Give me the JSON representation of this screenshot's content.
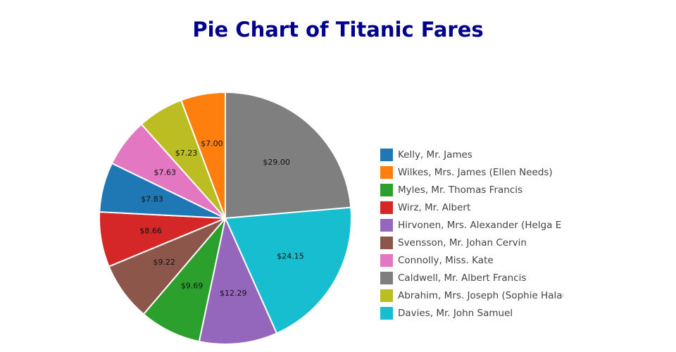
{
  "chart_data": {
    "type": "pie",
    "title": "Pie Chart of Titanic Fares",
    "categories": [
      "Kelly, Mr. James",
      "Wilkes, Mrs. James (Ellen Needs)",
      "Myles, Mr. Thomas Francis",
      "Wirz, Mr. Albert",
      "Hirvonen, Mrs. Alexander (Helga E Li",
      "Svensson, Mr. Johan Cervin",
      "Connolly, Miss. Kate",
      "Caldwell, Mr. Albert Francis",
      "Abrahim, Mrs. Joseph (Sophie Halaut",
      "Davies, Mr. John Samuel"
    ],
    "values": [
      7.83,
      7.0,
      9.69,
      8.66,
      12.29,
      9.22,
      7.63,
      29.0,
      7.23,
      24.15
    ],
    "value_labels": [
      "$7.83",
      "$7.00",
      "$9.69",
      "$8.66",
      "$12.29",
      "$9.22",
      "$7.63",
      "$29.00",
      "$7.23",
      "$24.15"
    ],
    "colors": [
      "#1f77b4",
      "#ff7f0e",
      "#2ca02c",
      "#d62728",
      "#9467bd",
      "#8c564b",
      "#e377c2",
      "#7f7f7f",
      "#bcbd22",
      "#17becf"
    ],
    "sort": true,
    "direction": "clockwise",
    "legend": "right"
  }
}
